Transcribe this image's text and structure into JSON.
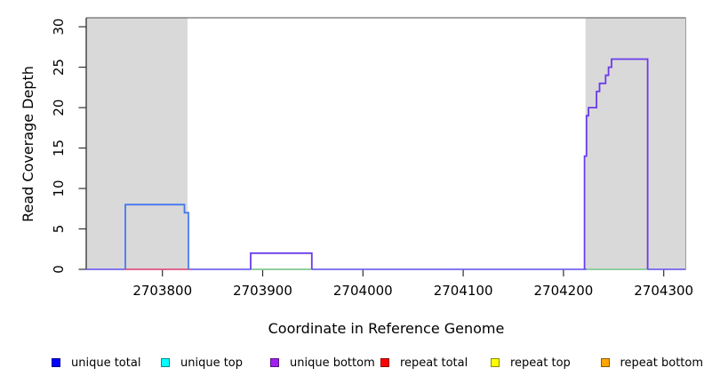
{
  "chart_data": {
    "type": "line",
    "title": "",
    "xlabel": "Coordinate in Reference Genome",
    "ylabel": "Read Coverage Depth",
    "xlim": [
      2703724,
      2704322
    ],
    "ylim": [
      0,
      31
    ],
    "x_ticks": [
      2703800,
      2703900,
      2704000,
      2704100,
      2704200,
      2704300
    ],
    "y_ticks": [
      0,
      5,
      10,
      15,
      20,
      25,
      30
    ],
    "grid": false,
    "legend_position": "bottom",
    "shaded_regions": [
      {
        "from": 2703724,
        "to": 2703825,
        "color": "#d9d9d9"
      },
      {
        "from": 2704222,
        "to": 2704322,
        "color": "#d9d9d9"
      }
    ],
    "baseline": {
      "value": 0,
      "from": 2703724,
      "to": 2704322,
      "color": "#7365ee"
    },
    "zero_segments": [
      {
        "name": "repeat-total-at-zero",
        "from": 2703762,
        "to": 2703828,
        "value": 0,
        "color": "#e8627e"
      },
      {
        "name": "top-strand-at-zero-left",
        "from": 2703888,
        "to": 2703949,
        "value": 0,
        "color": "#90d993"
      },
      {
        "name": "top-strand-at-zero-right",
        "from": 2704223,
        "to": 2704284,
        "value": 0,
        "color": "#90d993"
      }
    ],
    "series": [
      {
        "name": "unique-total-block",
        "color": "#4478f0",
        "points": [
          [
            2703763,
            0
          ],
          [
            2703763,
            8
          ],
          [
            2703822,
            8
          ],
          [
            2703822,
            7
          ],
          [
            2703826,
            7
          ],
          [
            2703826,
            0
          ]
        ]
      },
      {
        "name": "unique-bottom-block",
        "color": "#6a3bec",
        "points": [
          [
            2703888,
            0
          ],
          [
            2703888,
            2
          ],
          [
            2703949,
            2
          ],
          [
            2703949,
            0
          ]
        ]
      },
      {
        "name": "unique-bottom-staircase",
        "color": "#6a3bec",
        "points": [
          [
            2704221,
            0
          ],
          [
            2704221,
            14
          ],
          [
            2704223,
            14
          ],
          [
            2704223,
            19
          ],
          [
            2704225,
            19
          ],
          [
            2704225,
            20
          ],
          [
            2704233,
            20
          ],
          [
            2704233,
            22
          ],
          [
            2704236,
            22
          ],
          [
            2704236,
            23
          ],
          [
            2704242,
            23
          ],
          [
            2704242,
            24
          ],
          [
            2704245,
            24
          ],
          [
            2704245,
            25
          ],
          [
            2704248,
            25
          ],
          [
            2704248,
            26
          ],
          [
            2704284,
            26
          ],
          [
            2704284,
            0
          ]
        ]
      }
    ],
    "legend": [
      {
        "label": "unique total",
        "color": "#0000ff"
      },
      {
        "label": "unique top",
        "color": "#00ffff"
      },
      {
        "label": "unique bottom",
        "color": "#a020f0"
      },
      {
        "label": "repeat total",
        "color": "#ff0000"
      },
      {
        "label": "repeat top",
        "color": "#ffff00"
      },
      {
        "label": "repeat bottom",
        "color": "#ffa500"
      }
    ]
  }
}
